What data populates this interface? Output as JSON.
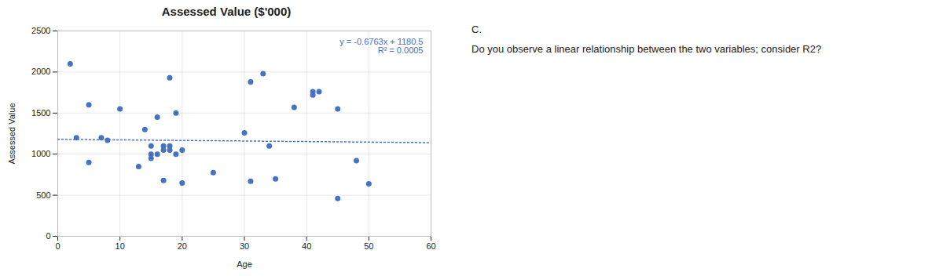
{
  "chart_data": {
    "type": "scatter",
    "title": "Assessed Value ($'000)",
    "x_label": "Age",
    "y_label": "Assessed Value",
    "color": "#4472C4",
    "marker": "circle",
    "x": [
      2,
      3,
      5,
      5,
      7,
      8,
      10,
      13,
      14,
      15,
      15,
      15,
      16,
      16,
      17,
      17,
      17,
      18,
      18,
      18,
      19,
      19,
      20,
      20,
      25,
      30,
      31,
      31,
      33,
      34,
      35,
      38,
      41,
      41,
      42,
      45,
      45,
      48,
      50
    ],
    "values": [
      2100,
      1200,
      1600,
      900,
      1200,
      1170,
      1550,
      850,
      1300,
      1100,
      950,
      1000,
      1000,
      1450,
      680,
      1100,
      1050,
      1930,
      1100,
      1050,
      1500,
      1000,
      650,
      1050,
      775,
      1260,
      1880,
      670,
      1980,
      1100,
      700,
      1570,
      1760,
      1720,
      1760,
      460,
      1550,
      920,
      640
    ],
    "trendline": {
      "slope": -0.6763,
      "intercept": 1180.5,
      "line_style": "dotted",
      "color": "#4472C4"
    },
    "annotations": [
      "y = -0.6763x + 1180.5",
      "R² = 0.0005"
    ],
    "notes": [
      "C.",
      "Do you observe a linear relationship between the two variables; consider R2?"
    ],
    "xlim": [
      0,
      60
    ],
    "ylim": [
      0,
      2500
    ],
    "xticks": [
      0,
      10,
      20,
      30,
      40,
      50,
      60
    ],
    "yticks": [
      0,
      500,
      1000,
      1500,
      2000,
      2500
    ],
    "grid": true
  }
}
